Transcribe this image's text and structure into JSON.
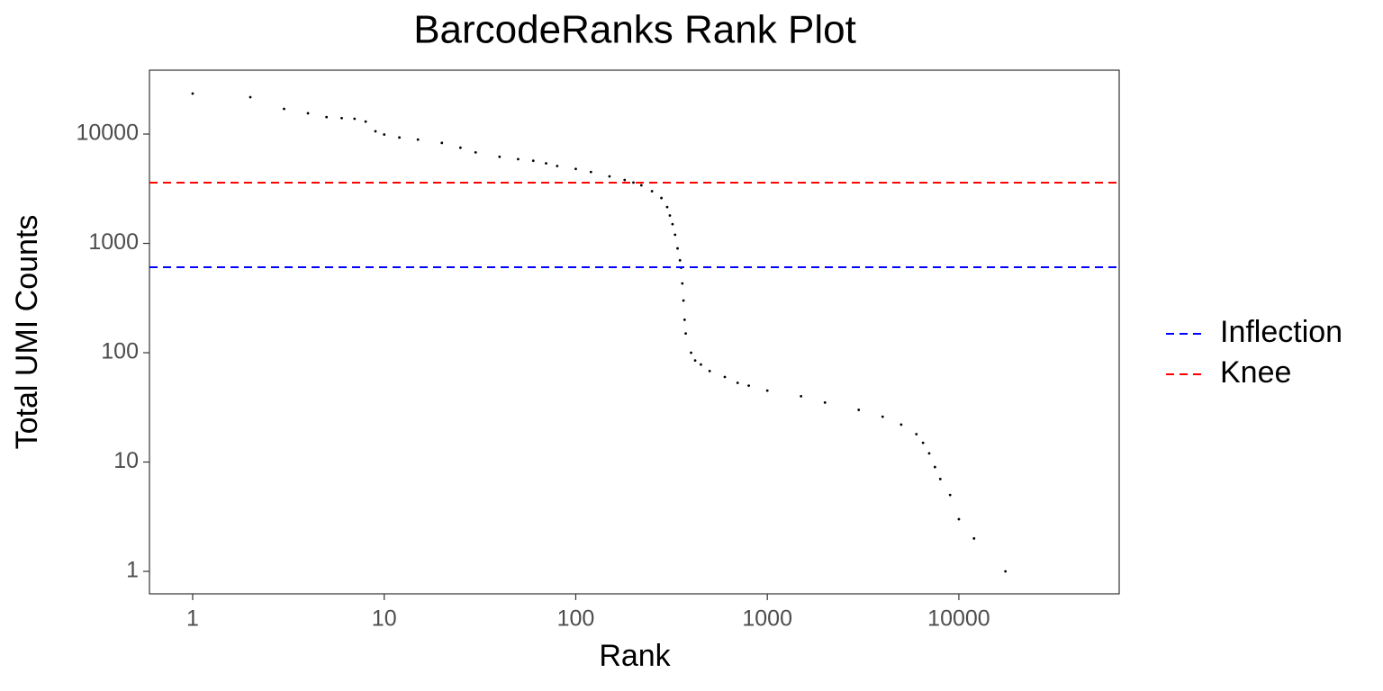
{
  "chart_data": {
    "type": "scatter",
    "title": "BarcodeRanks Rank Plot",
    "x_label": "Rank",
    "y_label": "Total UMI Counts",
    "log_x": true,
    "log_y": true,
    "grid": false,
    "legend_position": "right",
    "point_color": "#000000",
    "x": [
      1,
      2,
      3,
      4,
      5,
      6,
      7,
      8,
      9,
      10,
      12,
      15,
      20,
      25,
      30,
      40,
      50,
      60,
      70,
      80,
      100,
      120,
      150,
      180,
      200,
      220,
      250,
      280,
      300,
      310,
      320,
      330,
      340,
      350,
      355,
      360,
      365,
      370,
      375,
      400,
      420,
      450,
      500,
      600,
      700,
      800,
      1000,
      1500,
      2000,
      3000,
      4000,
      5000,
      6000,
      6500,
      7000,
      7500,
      8000,
      9000,
      10000,
      12000,
      17500
    ],
    "values": [
      23450,
      21750,
      17000,
      15500,
      14300,
      14000,
      13800,
      13000,
      10600,
      9900,
      9300,
      8900,
      8300,
      7500,
      6800,
      6200,
      5900,
      5700,
      5400,
      5100,
      4800,
      4500,
      4100,
      3800,
      3600,
      3400,
      3000,
      2600,
      2150,
      1800,
      1500,
      1200,
      900,
      700,
      600,
      430,
      300,
      200,
      150,
      100,
      85,
      78,
      68,
      60,
      53,
      50,
      45,
      40,
      35,
      30,
      26,
      22,
      18,
      15,
      12,
      9,
      7,
      5,
      3,
      2,
      1
    ],
    "hlines": [
      {
        "name": "Inflection",
        "value": 605,
        "color": "#0000ff"
      },
      {
        "name": "Knee",
        "value": 3595,
        "color": "#ff0000"
      }
    ],
    "xlim": [
      0.595,
      68700
    ],
    "ylim": [
      0.623,
      38400
    ],
    "xticks": [
      1,
      10,
      100,
      1000,
      10000
    ],
    "yticks": [
      1,
      10,
      100,
      1000,
      10000
    ]
  }
}
